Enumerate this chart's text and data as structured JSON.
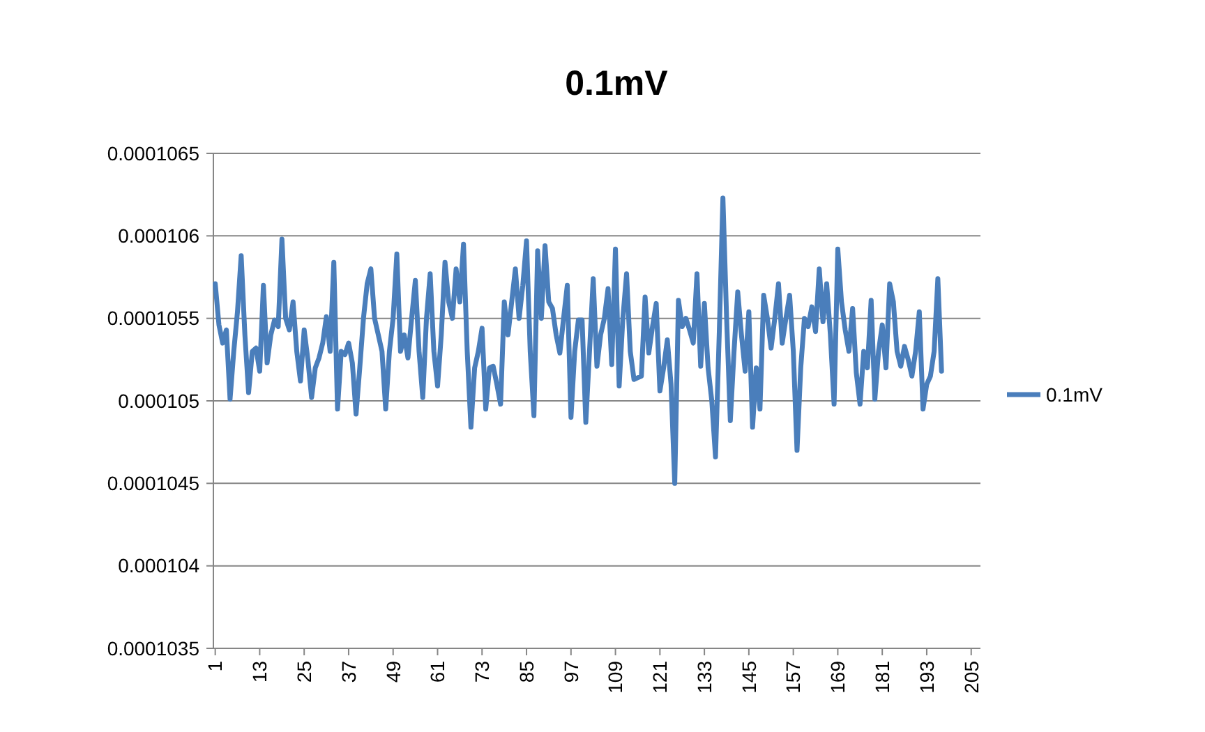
{
  "chart_data": {
    "type": "line",
    "title": "0.1mV",
    "x": [
      1,
      2,
      3,
      4,
      5,
      6,
      7,
      8,
      9,
      10,
      11,
      12,
      13,
      14,
      15,
      16,
      17,
      18,
      19,
      20,
      21,
      22,
      23,
      24,
      25,
      26,
      27,
      28,
      29,
      30,
      31,
      32,
      33,
      34,
      35,
      36,
      37,
      38,
      39,
      40,
      41,
      42,
      43,
      44,
      45,
      46,
      47,
      48,
      49,
      50,
      51,
      52,
      53,
      54,
      55,
      56,
      57,
      58,
      59,
      60,
      61,
      62,
      63,
      64,
      65,
      66,
      67,
      68,
      69,
      70,
      71,
      72,
      73,
      74,
      75,
      76,
      77,
      78,
      79,
      80,
      81,
      82,
      83,
      84,
      85,
      86,
      87,
      88,
      89,
      90,
      91,
      92,
      93,
      94,
      95,
      96,
      97,
      98,
      99,
      100,
      101,
      102,
      103,
      104,
      105,
      106,
      107,
      108,
      109,
      110,
      111,
      112,
      113,
      114,
      115,
      116,
      117,
      118,
      119,
      120,
      121,
      122,
      123,
      124,
      125,
      126,
      127,
      128,
      129,
      130,
      131,
      132,
      133,
      134,
      135,
      136,
      137,
      138,
      139,
      140,
      141,
      142,
      143,
      144,
      145,
      146,
      147,
      148,
      149,
      150,
      151,
      152,
      153,
      154,
      155,
      156,
      157,
      158,
      159,
      160,
      161,
      162,
      163,
      164,
      165,
      166,
      167,
      168,
      169,
      170,
      171,
      172,
      173,
      174,
      175,
      176,
      177,
      178,
      179,
      180,
      181,
      182,
      183,
      184,
      185,
      186,
      187,
      188,
      189,
      190,
      191,
      192,
      193,
      194,
      195,
      196,
      197
    ],
    "series": [
      {
        "name": "0.1mV",
        "color": "#4a7ebb",
        "values": [
          0.00010571,
          0.00010546,
          0.00010535,
          0.00010543,
          0.00010501,
          0.0001053,
          0.00010554,
          0.00010588,
          0.0001054,
          0.00010505,
          0.0001053,
          0.00010532,
          0.00010518,
          0.0001057,
          0.00010523,
          0.0001054,
          0.00010549,
          0.00010545,
          0.00010598,
          0.0001055,
          0.00010543,
          0.0001056,
          0.0001053,
          0.00010512,
          0.00010543,
          0.00010525,
          0.00010502,
          0.0001052,
          0.00010526,
          0.00010535,
          0.00010551,
          0.0001053,
          0.00010584,
          0.00010495,
          0.0001053,
          0.00010528,
          0.00010535,
          0.00010523,
          0.00010492,
          0.0001052,
          0.0001055,
          0.00010571,
          0.0001058,
          0.0001055,
          0.0001054,
          0.0001053,
          0.00010495,
          0.0001053,
          0.0001055,
          0.00010589,
          0.0001053,
          0.0001054,
          0.00010526,
          0.0001055,
          0.00010573,
          0.0001053,
          0.00010502,
          0.0001055,
          0.00010577,
          0.0001053,
          0.00010509,
          0.0001054,
          0.00010584,
          0.0001056,
          0.0001055,
          0.0001058,
          0.0001056,
          0.00010595,
          0.0001053,
          0.00010484,
          0.0001052,
          0.0001053,
          0.00010544,
          0.00010495,
          0.0001052,
          0.00010521,
          0.0001051,
          0.00010498,
          0.0001056,
          0.0001054,
          0.0001056,
          0.0001058,
          0.0001055,
          0.0001057,
          0.00010597,
          0.0001053,
          0.00010491,
          0.00010591,
          0.0001055,
          0.00010594,
          0.0001056,
          0.00010556,
          0.0001054,
          0.00010529,
          0.0001055,
          0.0001057,
          0.0001049,
          0.0001053,
          0.00010549,
          0.00010549,
          0.00010487,
          0.0001053,
          0.00010574,
          0.00010521,
          0.0001054,
          0.0001055,
          0.00010568,
          0.00010522,
          0.00010592,
          0.00010509,
          0.0001055,
          0.00010577,
          0.0001053,
          0.00010513,
          0.00010514,
          0.00010515,
          0.00010563,
          0.00010529,
          0.00010545,
          0.00010559,
          0.00010506,
          0.0001052,
          0.00010537,
          0.0001051,
          0.0001045,
          0.00010561,
          0.00010545,
          0.0001055,
          0.00010543,
          0.00010535,
          0.00010577,
          0.00010521,
          0.00010559,
          0.0001052,
          0.000105,
          0.00010466,
          0.0001054,
          0.00010623,
          0.0001055,
          0.00010488,
          0.0001053,
          0.00010566,
          0.0001054,
          0.00010518,
          0.00010554,
          0.00010484,
          0.0001052,
          0.00010495,
          0.00010564,
          0.0001055,
          0.00010532,
          0.0001055,
          0.00010571,
          0.00010535,
          0.0001055,
          0.00010564,
          0.0001053,
          0.0001047,
          0.0001052,
          0.0001055,
          0.00010545,
          0.00010557,
          0.00010542,
          0.0001058,
          0.00010548,
          0.00010571,
          0.0001054,
          0.00010498,
          0.00010592,
          0.0001056,
          0.00010543,
          0.0001053,
          0.00010556,
          0.00010517,
          0.00010498,
          0.0001053,
          0.0001052,
          0.00010561,
          0.00010501,
          0.0001053,
          0.00010546,
          0.0001052,
          0.00010571,
          0.0001056,
          0.0001053,
          0.00010521,
          0.00010533,
          0.00010525,
          0.00010515,
          0.0001053,
          0.00010554,
          0.00010495,
          0.0001051,
          0.00010515,
          0.0001053,
          0.00010574,
          0.00010518
        ]
      }
    ],
    "xlim": [
      0.5,
      207.5
    ],
    "xticks": [
      1,
      13,
      25,
      37,
      49,
      61,
      73,
      85,
      97,
      109,
      121,
      133,
      145,
      157,
      169,
      181,
      193,
      205
    ],
    "ylim": [
      0.0001035,
      0.0001065
    ],
    "yticks": [
      0.0001035,
      0.000104,
      0.0001045,
      0.000105,
      0.0001055,
      0.000106,
      0.0001065
    ],
    "grid": "y",
    "legend": "right",
    "marker": "none",
    "line_style": "solid"
  }
}
